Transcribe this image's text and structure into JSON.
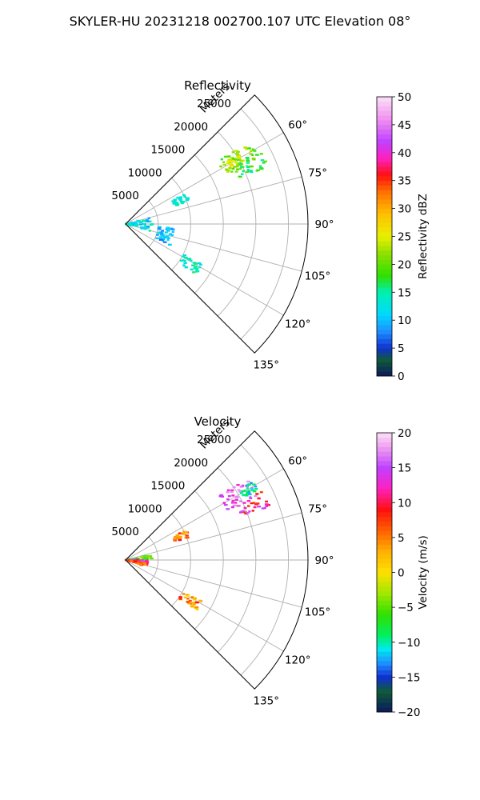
{
  "suptitle": "SKYLER-HU  20231218  002700.107 UTC Elevation 08°",
  "chart_data": [
    {
      "type": "polar-sector",
      "title": "Reflectivity",
      "radial_label": "Meters",
      "radial_ticks": [
        5000,
        10000,
        15000,
        20000,
        25000
      ],
      "radial_tick_labels": [
        "5000",
        "10000",
        "15000",
        "20000",
        "25000"
      ],
      "angle_ticks": [
        45,
        60,
        75,
        90,
        105,
        120,
        135
      ],
      "angle_tick_labels": [
        "60°",
        "75°",
        "90°",
        "105°",
        "120°",
        "135°"
      ],
      "angle_range": [
        45,
        135
      ],
      "rmax": 28000,
      "grid": true,
      "colorbar": {
        "label": "Reflectivity dBZ",
        "range": [
          0,
          50
        ],
        "ticks": [
          0,
          5,
          10,
          15,
          20,
          25,
          30,
          35,
          40,
          45,
          50
        ],
        "tick_labels": [
          "0",
          "5",
          "10",
          "15",
          "20",
          "25",
          "30",
          "35",
          "40",
          "45",
          "50"
        ],
        "stops": [
          {
            "v": 0,
            "c": "#0a1a5c"
          },
          {
            "v": 3,
            "c": "#0f5a3a"
          },
          {
            "v": 5,
            "c": "#1030d0"
          },
          {
            "v": 8,
            "c": "#1e8fff"
          },
          {
            "v": 11,
            "c": "#00d8ff"
          },
          {
            "v": 15,
            "c": "#00f0b0"
          },
          {
            "v": 18,
            "c": "#30e000"
          },
          {
            "v": 22,
            "c": "#90e000"
          },
          {
            "v": 25,
            "c": "#e8f000"
          },
          {
            "v": 29,
            "c": "#ffc000"
          },
          {
            "v": 33,
            "c": "#ff7000"
          },
          {
            "v": 36,
            "c": "#ff1010"
          },
          {
            "v": 39,
            "c": "#ff20c0"
          },
          {
            "v": 42,
            "c": "#c040ff"
          },
          {
            "v": 46,
            "c": "#f090f0"
          },
          {
            "v": 50,
            "c": "#fce0f8"
          }
        ]
      },
      "echo_clusters": [
        {
          "az_range": [
            55,
            66
          ],
          "r_range": [
            17000,
            23000
          ],
          "value": 20,
          "spread": 4
        },
        {
          "az_range": [
            58,
            63
          ],
          "r_range": [
            17500,
            20500
          ],
          "value": 24,
          "spread": 3
        },
        {
          "az_range": [
            62,
            68
          ],
          "r_range": [
            18500,
            23500
          ],
          "value": 18,
          "spread": 4
        },
        {
          "az_range": [
            63,
            70
          ],
          "r_range": [
            8000,
            10500
          ],
          "value": 13,
          "spread": 3
        },
        {
          "az_range": [
            75,
            106
          ],
          "r_range": [
            0,
            4000
          ],
          "value": 12,
          "spread": 4
        },
        {
          "az_range": [
            118,
            126
          ],
          "r_range": [
            10000,
            13500
          ],
          "value": 14,
          "spread": 3
        },
        {
          "az_range": [
            95,
            116
          ],
          "r_range": [
            5000,
            7500
          ],
          "value": 10,
          "spread": 3
        }
      ]
    },
    {
      "type": "polar-sector",
      "title": "Velocity",
      "radial_label": "Meters",
      "radial_ticks": [
        5000,
        10000,
        15000,
        20000,
        25000
      ],
      "radial_tick_labels": [
        "5000",
        "10000",
        "15000",
        "20000",
        "25000"
      ],
      "angle_ticks": [
        45,
        60,
        75,
        90,
        105,
        120,
        135
      ],
      "angle_tick_labels": [
        "60°",
        "75°",
        "90°",
        "105°",
        "120°",
        "135°"
      ],
      "angle_range": [
        45,
        135
      ],
      "rmax": 28000,
      "grid": true,
      "colorbar": {
        "label": "Velocity (m/s)",
        "range": [
          -20,
          20
        ],
        "ticks": [
          -20,
          -15,
          -10,
          -5,
          0,
          5,
          10,
          15,
          20
        ],
        "tick_labels": [
          "−20",
          "−15",
          "−10",
          "−5",
          "0",
          "5",
          "10",
          "15",
          "20"
        ],
        "stops": [
          {
            "v": -20,
            "c": "#0a1a5c"
          },
          {
            "v": -17,
            "c": "#0f5a3a"
          },
          {
            "v": -15,
            "c": "#1030d0"
          },
          {
            "v": -13,
            "c": "#1e8fff"
          },
          {
            "v": -11,
            "c": "#00e8f0"
          },
          {
            "v": -9,
            "c": "#00f060"
          },
          {
            "v": -6,
            "c": "#30e000"
          },
          {
            "v": -3,
            "c": "#a0e800"
          },
          {
            "v": 0,
            "c": "#ffe000"
          },
          {
            "v": 3,
            "c": "#ffb000"
          },
          {
            "v": 6,
            "c": "#ff6000"
          },
          {
            "v": 9,
            "c": "#ff1010"
          },
          {
            "v": 12,
            "c": "#ff20c0"
          },
          {
            "v": 15,
            "c": "#c040ff"
          },
          {
            "v": 18,
            "c": "#f0a0f0"
          },
          {
            "v": 20,
            "c": "#fce0f8"
          }
        ]
      },
      "echo_clusters": [
        {
          "az_range": [
            55,
            64
          ],
          "r_range": [
            17000,
            22500
          ],
          "value": 15,
          "spread": 3
        },
        {
          "az_range": [
            63,
            70
          ],
          "r_range": [
            19000,
            23500
          ],
          "value": 12,
          "spread": 5
        },
        {
          "az_range": [
            58,
            62
          ],
          "r_range": [
            20500,
            23000
          ],
          "value": -11,
          "spread": 3
        },
        {
          "az_range": [
            63,
            70
          ],
          "r_range": [
            8000,
            10500
          ],
          "value": 5,
          "spread": 4
        },
        {
          "az_range": [
            78,
            88
          ],
          "r_range": [
            0,
            4000
          ],
          "value": -6,
          "spread": 3
        },
        {
          "az_range": [
            88,
            100
          ],
          "r_range": [
            0,
            3500
          ],
          "value": 13,
          "spread": 3
        },
        {
          "az_range": [
            98,
            108
          ],
          "r_range": [
            0,
            3200
          ],
          "value": 7,
          "spread": 3
        },
        {
          "az_range": [
            118,
            126
          ],
          "r_range": [
            10000,
            13500
          ],
          "value": 4,
          "spread": 5
        }
      ]
    }
  ]
}
